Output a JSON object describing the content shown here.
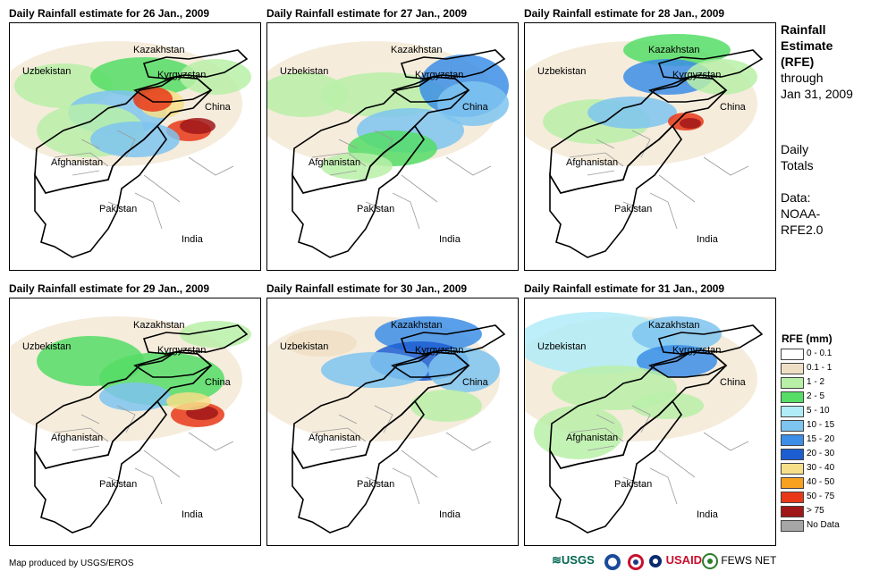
{
  "panels": [
    {
      "title": "Daily Rainfall estimate for 26 Jan., 2009"
    },
    {
      "title": "Daily Rainfall estimate for 27 Jan., 2009"
    },
    {
      "title": "Daily Rainfall estimate for 28 Jan., 2009"
    },
    {
      "title": "Daily Rainfall estimate for 29 Jan., 2009"
    },
    {
      "title": "Daily Rainfall estimate for 30 Jan., 2009"
    },
    {
      "title": "Daily Rainfall estimate for 31 Jan., 2009"
    }
  ],
  "map_labels": {
    "kazakhstan": "Kazakhstan",
    "uzbekistan": "Uzbekistan",
    "kyrgyzstan": "Kyrgyzstan",
    "china": "China",
    "afghanistan": "Afghanistan",
    "pakistan": "Pakistan",
    "india": "India"
  },
  "side": {
    "l1": "Rainfall",
    "l2": "Estimate",
    "l3": "(RFE)",
    "l4": "through",
    "l5": "Jan 31, 2009",
    "l6": "Daily",
    "l7": "Totals",
    "l8": "Data:",
    "l9": "NOAA-",
    "l10": "RFE2.0"
  },
  "legend": {
    "title": "RFE (mm)",
    "items": [
      {
        "label": "0 - 0.1",
        "color": "#ffffff"
      },
      {
        "label": "0.1 - 1",
        "color": "#eedfc4"
      },
      {
        "label": "1 - 2",
        "color": "#b8f0a8"
      },
      {
        "label": "2 - 5",
        "color": "#55dd66"
      },
      {
        "label": "5 - 10",
        "color": "#b0ecf8"
      },
      {
        "label": "10 - 15",
        "color": "#7ec4f0"
      },
      {
        "label": "15 - 20",
        "color": "#3c8ee6"
      },
      {
        "label": "20 - 30",
        "color": "#1c5ed2"
      },
      {
        "label": "30 - 40",
        "color": "#f6df88"
      },
      {
        "label": "40 - 50",
        "color": "#f8a020"
      },
      {
        "label": "50 - 75",
        "color": "#e83818"
      },
      {
        "label": "> 75",
        "color": "#a01818"
      },
      {
        "label": "No Data",
        "color": "#a6a6a6"
      }
    ]
  },
  "footer": {
    "credit": "Map produced by USGS/EROS",
    "logo_usgs": "USGS",
    "logo_usaid": "USAID",
    "logo_fews": "FEWS NET"
  }
}
